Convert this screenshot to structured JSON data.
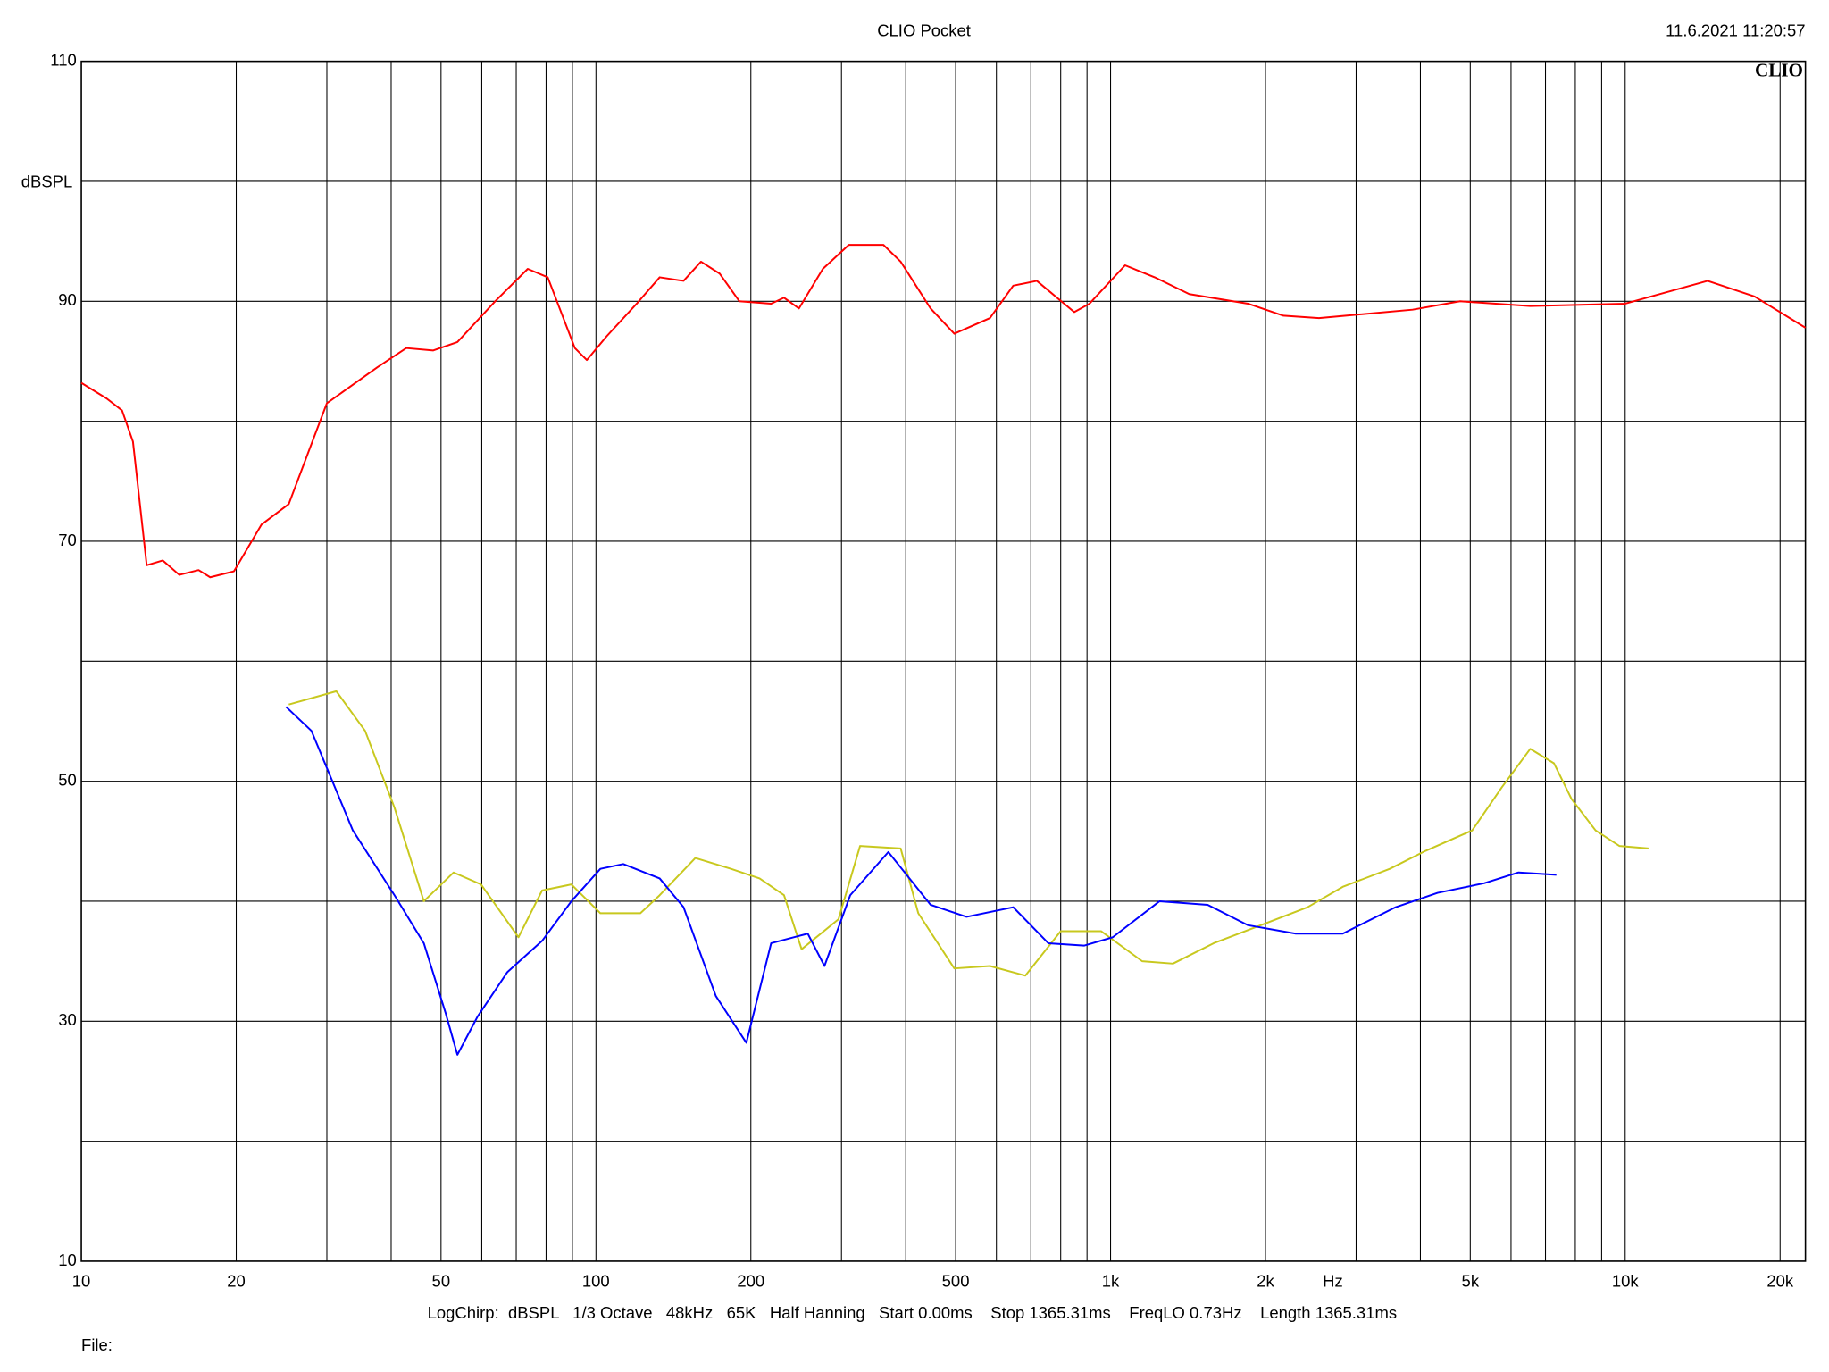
{
  "chart_data": {
    "type": "line",
    "title": "CLIO Pocket",
    "timestamp": "11.6.2021 11:20:57",
    "logo": "CLIO",
    "x_label": "Hz",
    "y_label": "dBSPL",
    "footer": "LogChirp:  dBSPL   1/3 Octave   48kHz   65K   Half Hanning   Start 0.00ms    Stop 1365.31ms    FreqLO 0.73Hz    Length 1365.31ms",
    "file_label": "File:",
    "x_log": true,
    "grid": true,
    "xlim": [
      10,
      22400
    ],
    "ylim": [
      10,
      110
    ],
    "xticks": [
      10,
      20,
      50,
      100,
      200,
      500,
      {
        "value": 1000,
        "label": "1k"
      },
      {
        "value": 2000,
        "label": "2k"
      },
      {
        "value": 5000,
        "label": "5k"
      },
      {
        "value": 10000,
        "label": "10k"
      },
      {
        "value": 20000,
        "label": "20k"
      }
    ],
    "xminor": [
      30,
      40,
      60,
      70,
      80,
      90,
      300,
      400,
      600,
      700,
      800,
      900,
      3000,
      4000,
      6000,
      7000,
      8000,
      9000
    ],
    "yticks": [
      10,
      30,
      50,
      70,
      90,
      110
    ],
    "yminor": [
      20,
      40,
      60,
      80,
      100
    ],
    "series": [
      {
        "color": "#ff0000",
        "x": [
          10,
          11.2,
          12,
          12.6,
          13.4,
          14.4,
          15.5,
          16.9,
          17.8,
          19.8,
          22.4,
          25.3,
          30,
          37.6,
          42.8,
          48.3,
          53.8,
          63.7,
          73.7,
          80.6,
          91,
          96,
          105,
          120,
          133,
          148,
          160,
          174,
          190,
          219,
          232,
          248,
          276,
          310,
          362,
          391,
          447,
          497,
          583,
          647,
          719,
          850,
          910,
          1067,
          1218,
          1422,
          1850,
          2167,
          2541,
          3862,
          4778,
          6540,
          10000,
          14460,
          17840,
          22400
        ],
        "values": [
          83.2,
          81.9,
          80.9,
          78.3,
          68,
          68.4,
          67.2,
          67.6,
          67,
          67.5,
          71.4,
          73.1,
          81.5,
          84.5,
          86.1,
          85.9,
          86.6,
          90,
          92.7,
          92,
          86.1,
          85.1,
          87.1,
          89.8,
          92,
          91.7,
          93.3,
          92.3,
          90,
          89.8,
          90.3,
          89.4,
          92.7,
          94.7,
          94.7,
          93.3,
          89.4,
          87.3,
          88.6,
          91.3,
          91.7,
          89.1,
          89.8,
          93,
          92,
          90.6,
          89.8,
          88.8,
          88.6,
          89.3,
          90,
          89.6,
          89.8,
          91.7,
          90.4,
          87.8
        ]
      },
      {
        "color": "#c8c81e",
        "x": [
          25.3,
          31.3,
          35.6,
          40.6,
          46.3,
          52.9,
          59.8,
          70.7,
          78.6,
          89.6,
          102,
          122,
          133,
          156,
          183,
          208,
          232,
          251,
          296,
          326,
          391,
          423,
          497,
          583,
          683,
          800,
          959,
          1152,
          1322,
          1586,
          1958,
          2414,
          2826,
          3488,
          4095,
          5043,
          5760,
          6540,
          7270,
          7870,
          8760,
          9750,
          11100
        ],
        "values": [
          56.4,
          57.5,
          54.2,
          47.8,
          40,
          42.4,
          41.4,
          37,
          40.9,
          41.4,
          39,
          39,
          40.5,
          43.6,
          42.7,
          41.9,
          40.5,
          36,
          38.5,
          44.6,
          44.4,
          39,
          34.4,
          34.6,
          33.8,
          37.5,
          37.5,
          35,
          34.8,
          36.5,
          38,
          39.5,
          41.2,
          42.7,
          44.2,
          45.9,
          49.5,
          52.7,
          51.5,
          48.5,
          45.9,
          44.6,
          44.4
        ]
      },
      {
        "color": "#0000ff",
        "x": [
          25,
          28,
          33.7,
          40.6,
          46.3,
          51.1,
          53.8,
          58.9,
          67.3,
          78.6,
          89.6,
          102,
          113,
          133,
          148,
          171,
          196,
          219,
          258,
          278,
          312,
          370,
          447,
          525,
          647,
          757,
          888,
          1010,
          1245,
          1544,
          1850,
          2290,
          2826,
          3580,
          4320,
          5320,
          6205,
          7350
        ],
        "values": [
          56.2,
          54.2,
          45.9,
          40.5,
          36.5,
          30.6,
          27.2,
          30.4,
          34.1,
          36.7,
          40,
          42.7,
          43.1,
          41.9,
          39.5,
          32.1,
          28.2,
          36.5,
          37.3,
          34.6,
          40.5,
          44.1,
          39.7,
          38.7,
          39.5,
          36.5,
          36.3,
          37,
          40,
          39.7,
          38,
          37.3,
          37.3,
          39.5,
          40.7,
          41.5,
          42.4,
          42.2
        ]
      }
    ]
  }
}
